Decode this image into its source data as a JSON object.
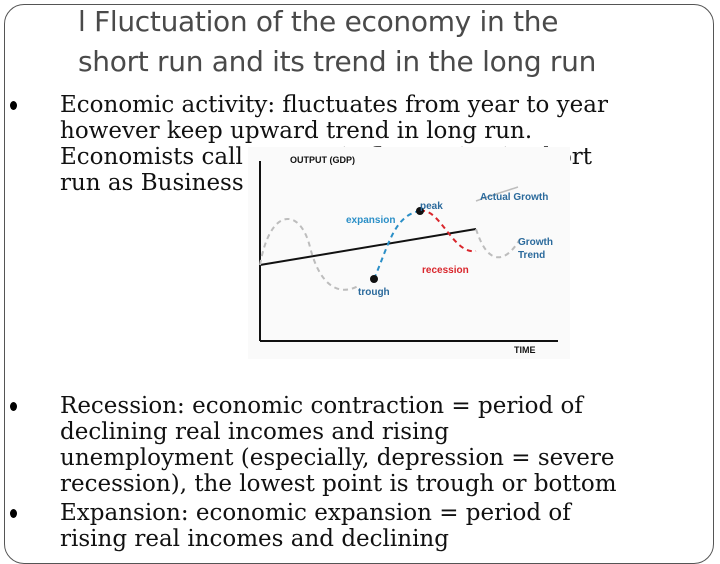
{
  "title": {
    "line1": "l Fluctuation of the economy in the",
    "line2": "short run and its trend in the long run"
  },
  "bullets": [
    {
      "lines": [
        "Economic activity: fluctuates from year to year",
        "however keep upward trend in long run.",
        "Economists  call economic fluctuation in short",
        "run as Business cycle"
      ]
    },
    {
      "lines": [
        "Recession: economic contraction = period of",
        "declining real incomes and rising",
        "unemployment (especially, depression = severe",
        "recession), the lowest point is trough or bottom"
      ]
    },
    {
      "lines": [
        "Expansion: economic expansion = period of",
        "rising real incomes and declining"
      ]
    }
  ],
  "diagram": {
    "y_axis_label": "OUTPUT (GDP)",
    "x_axis_label": "TIME",
    "labels": {
      "actual_growth": "Actual Growth",
      "growth_trend_1": "Growth",
      "growth_trend_2": "Trend",
      "peak": "peak",
      "trough": "trough",
      "expansion": "expansion",
      "recession": "recession"
    },
    "colors": {
      "expansion": "#2b8fc7",
      "recession": "#d9262c",
      "actual_growth": "#bdbdbd",
      "trend": "#111111",
      "point": "#111111"
    }
  }
}
